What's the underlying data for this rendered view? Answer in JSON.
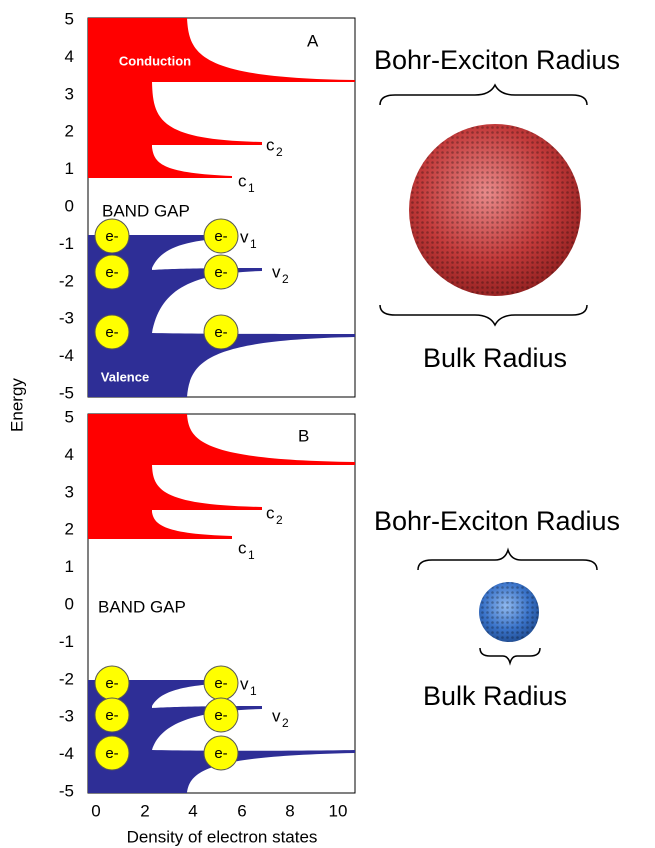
{
  "y_axis_label": "Energy",
  "x_axis_label": "Density of electron states",
  "x_ticks": [
    "0",
    "2",
    "4",
    "6",
    "8",
    "10"
  ],
  "panels": [
    {
      "letter": "A",
      "y_ticks": [
        "5",
        "4",
        "3",
        "2",
        "1",
        "0",
        "-1",
        "-2",
        "-3",
        "-4",
        "-5"
      ],
      "conduction_label": "Conduction",
      "valence_label": "Valence",
      "band_gap_label": "BAND GAP",
      "levels": [
        {
          "letter": "c",
          "subscript": "2"
        },
        {
          "letter": "c",
          "subscript": "1"
        },
        {
          "letter": "v",
          "subscript": "1"
        },
        {
          "letter": "v",
          "subscript": "2"
        }
      ],
      "electrons": [
        "e-",
        "e-",
        "e-",
        "e-",
        "e-",
        "e-"
      ],
      "bohr_exciton_label": "Bohr-Exciton Radius",
      "bulk_label": "Bulk Radius"
    },
    {
      "letter": "B",
      "y_ticks": [
        "5",
        "4",
        "3",
        "2",
        "1",
        "0",
        "-1",
        "-2",
        "-3",
        "-4",
        "-5"
      ],
      "band_gap_label": "BAND GAP",
      "levels": [
        {
          "letter": "c",
          "subscript": "2"
        },
        {
          "letter": "c",
          "subscript": "1"
        },
        {
          "letter": "v",
          "subscript": "1"
        },
        {
          "letter": "v",
          "subscript": "2"
        }
      ],
      "electrons": [
        "e-",
        "e-",
        "e-",
        "e-",
        "e-",
        "e-"
      ],
      "bohr_exciton_label": "Bohr-Exciton Radius",
      "bulk_label": "Bulk Radius"
    }
  ]
}
